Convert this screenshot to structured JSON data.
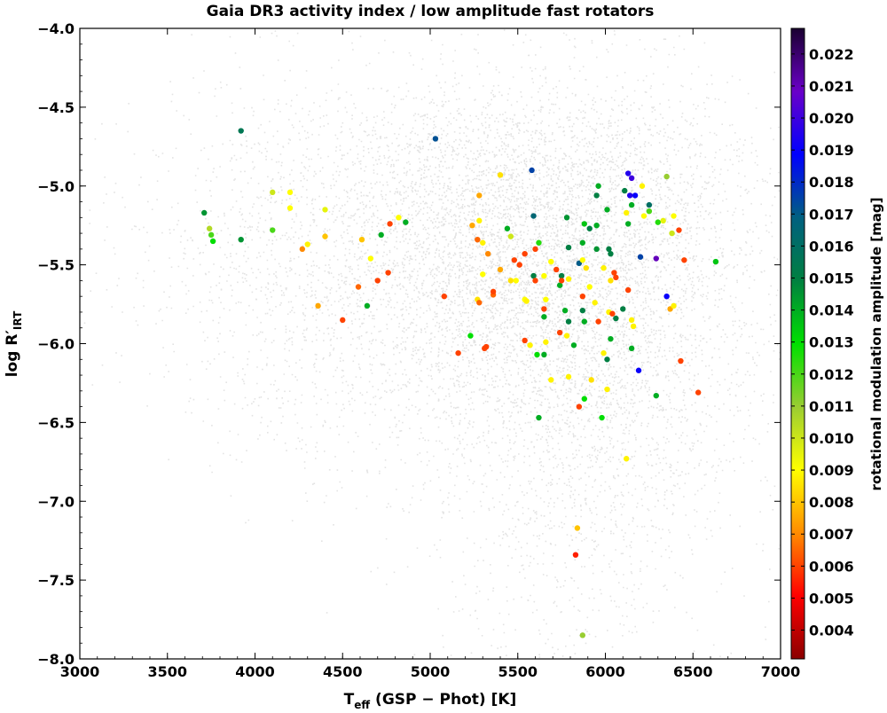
{
  "chart_data": {
    "type": "scatter",
    "title": "Gaia DR3 activity index / low amplitude fast rotators",
    "xlabel": {
      "main": "T",
      "sub": "eff",
      "rest": " (GSP − Phot) [K]"
    },
    "ylabel": {
      "main": "log R′",
      "sub": "IRT"
    },
    "xlim": [
      3000,
      7000
    ],
    "ylim": [
      -8.0,
      -4.0
    ],
    "x_ticks": [
      3000,
      3500,
      4000,
      4500,
      5000,
      5500,
      6000,
      6500,
      7000
    ],
    "x_tick_labels": [
      "3000",
      "3500",
      "4000",
      "4500",
      "5000",
      "5500",
      "6000",
      "6500",
      "7000"
    ],
    "y_ticks": [
      -4.0,
      -4.5,
      -5.0,
      -5.5,
      -6.0,
      -6.5,
      -7.0,
      -7.5,
      -8.0
    ],
    "y_tick_labels": [
      "−4.0",
      "−4.5",
      "−5.0",
      "−5.5",
      "−6.0",
      "−6.5",
      "−7.0",
      "−7.5",
      "−8.0"
    ],
    "grid": false,
    "colorbar": {
      "label": "rotational modulation amplitude [mag]",
      "range": [
        0.0031,
        0.0228
      ],
      "ticks": [
        0.004,
        0.005,
        0.006,
        0.007,
        0.008,
        0.009,
        0.01,
        0.011,
        0.012,
        0.013,
        0.014,
        0.015,
        0.016,
        0.017,
        0.018,
        0.019,
        0.02,
        0.021,
        0.022
      ],
      "tick_labels": [
        "0.004",
        "0.005",
        "0.006",
        "0.007",
        "0.008",
        "0.009",
        "0.010",
        "0.011",
        "0.012",
        "0.013",
        "0.014",
        "0.015",
        "0.016",
        "0.017",
        "0.018",
        "0.019",
        "0.020",
        "0.021",
        "0.022"
      ],
      "colors": [
        "#8b0000",
        "#ff0000",
        "#ff8c00",
        "#ffff00",
        "#9acd32",
        "#00e000",
        "#008040",
        "#006080",
        "#0000ff",
        "#6a00c8",
        "#1a0030"
      ]
    },
    "background_series": {
      "name": "Gaia DR3 sample",
      "color": "#808080",
      "description_density_regions": [
        {
          "x": 5600,
          "y": -5.4,
          "sx": 500,
          "sy": 0.55,
          "w": 0.35
        },
        {
          "x": 5000,
          "y": -5.7,
          "sx": 700,
          "sy": 0.6,
          "w": 0.2
        },
        {
          "x": 5900,
          "y": -6.5,
          "sx": 450,
          "sy": 0.8,
          "w": 0.2
        },
        {
          "x": 4400,
          "y": -5.3,
          "sx": 600,
          "sy": 0.5,
          "w": 0.1
        },
        {
          "x": 6300,
          "y": -5.5,
          "sx": 500,
          "sy": 0.6,
          "w": 0.1
        },
        {
          "x": 5500,
          "y": -4.8,
          "sx": 900,
          "sy": 0.2,
          "w": 0.05
        }
      ]
    },
    "series": [
      {
        "points": [
          [
            3920,
            -4.65,
            0.0155
          ],
          [
            5030,
            -4.7,
            0.0172
          ],
          [
            5580,
            -4.9,
            0.0175
          ],
          [
            5400,
            -4.93,
            0.0085
          ],
          [
            6130,
            -4.92,
            0.0195
          ],
          [
            6150,
            -4.95,
            0.02
          ],
          [
            6350,
            -4.94,
            0.011
          ],
          [
            6210,
            -5.0,
            0.0088
          ],
          [
            5960,
            -5.0,
            0.014
          ],
          [
            6110,
            -5.03,
            0.015
          ],
          [
            6140,
            -5.06,
            0.0195
          ],
          [
            6170,
            -5.06,
            0.019
          ],
          [
            5950,
            -5.06,
            0.015
          ],
          [
            5280,
            -5.06,
            0.0075
          ],
          [
            4100,
            -5.04,
            0.01
          ],
          [
            4200,
            -5.04,
            0.009
          ],
          [
            4200,
            -5.14,
            0.009
          ],
          [
            4400,
            -5.15,
            0.0095
          ],
          [
            3710,
            -5.17,
            0.0145
          ],
          [
            6150,
            -5.12,
            0.014
          ],
          [
            6250,
            -5.16,
            0.012
          ],
          [
            6120,
            -5.17,
            0.0088
          ],
          [
            6250,
            -5.12,
            0.016
          ],
          [
            6390,
            -5.19,
            0.009
          ],
          [
            6010,
            -5.15,
            0.014
          ],
          [
            5590,
            -5.19,
            0.0165
          ],
          [
            5780,
            -5.2,
            0.0145
          ],
          [
            4820,
            -5.2,
            0.009
          ],
          [
            4860,
            -5.23,
            0.014
          ],
          [
            5280,
            -5.22,
            0.0088
          ],
          [
            4770,
            -5.24,
            0.006
          ],
          [
            5880,
            -5.24,
            0.0135
          ],
          [
            5950,
            -5.25,
            0.014
          ],
          [
            5910,
            -5.27,
            0.015
          ],
          [
            6130,
            -5.24,
            0.014
          ],
          [
            6330,
            -5.22,
            0.0095
          ],
          [
            6220,
            -5.19,
            0.009
          ],
          [
            6420,
            -5.28,
            0.006
          ],
          [
            6300,
            -5.23,
            0.0125
          ],
          [
            5240,
            -5.25,
            0.0075
          ],
          [
            3740,
            -5.27,
            0.0105
          ],
          [
            4100,
            -5.28,
            0.012
          ],
          [
            5440,
            -5.27,
            0.014
          ],
          [
            5460,
            -5.32,
            0.01
          ],
          [
            4720,
            -5.31,
            0.014
          ],
          [
            3750,
            -5.31,
            0.012
          ],
          [
            3760,
            -5.35,
            0.013
          ],
          [
            3920,
            -5.34,
            0.0145
          ],
          [
            4610,
            -5.34,
            0.008
          ],
          [
            4400,
            -5.32,
            0.008
          ],
          [
            5270,
            -5.34,
            0.0065
          ],
          [
            5300,
            -5.36,
            0.0088
          ],
          [
            5620,
            -5.36,
            0.0125
          ],
          [
            5870,
            -5.36,
            0.014
          ],
          [
            6380,
            -5.3,
            0.01
          ],
          [
            6450,
            -5.47,
            0.006
          ],
          [
            6630,
            -5.48,
            0.0135
          ],
          [
            4300,
            -5.37,
            0.0088
          ],
          [
            4270,
            -5.4,
            0.007
          ],
          [
            5600,
            -5.4,
            0.006
          ],
          [
            5790,
            -5.39,
            0.015
          ],
          [
            5950,
            -5.4,
            0.0145
          ],
          [
            6020,
            -5.4,
            0.015
          ],
          [
            5330,
            -5.43,
            0.007
          ],
          [
            5540,
            -5.43,
            0.006
          ],
          [
            6030,
            -5.43,
            0.015
          ],
          [
            6200,
            -5.45,
            0.0175
          ],
          [
            6290,
            -5.46,
            0.021
          ],
          [
            5850,
            -5.49,
            0.017
          ],
          [
            5870,
            -5.47,
            0.009
          ],
          [
            5690,
            -5.48,
            0.009
          ],
          [
            4660,
            -5.46,
            0.009
          ],
          [
            5480,
            -5.47,
            0.006
          ],
          [
            5510,
            -5.5,
            0.006
          ],
          [
            4760,
            -5.55,
            0.006
          ],
          [
            5720,
            -5.53,
            0.006
          ],
          [
            5400,
            -5.53,
            0.0075
          ],
          [
            5300,
            -5.56,
            0.009
          ],
          [
            5650,
            -5.57,
            0.009
          ],
          [
            5750,
            -5.57,
            0.015
          ],
          [
            5790,
            -5.59,
            0.0088
          ],
          [
            5890,
            -5.52,
            0.0085
          ],
          [
            5990,
            -5.52,
            0.0088
          ],
          [
            6050,
            -5.55,
            0.006
          ],
          [
            6060,
            -5.58,
            0.006
          ],
          [
            6030,
            -5.6,
            0.0085
          ],
          [
            5460,
            -5.6,
            0.0085
          ],
          [
            5490,
            -5.6,
            0.009
          ],
          [
            5590,
            -5.57,
            0.015
          ],
          [
            5600,
            -5.6,
            0.006
          ],
          [
            4700,
            -5.6,
            0.006
          ],
          [
            5740,
            -5.63,
            0.014
          ],
          [
            5750,
            -5.6,
            0.006
          ],
          [
            4590,
            -5.64,
            0.0065
          ],
          [
            5910,
            -5.64,
            0.009
          ],
          [
            6130,
            -5.66,
            0.006
          ],
          [
            5080,
            -5.7,
            0.006
          ],
          [
            5360,
            -5.69,
            0.0065
          ],
          [
            5360,
            -5.67,
            0.006
          ],
          [
            5270,
            -5.72,
            0.0085
          ],
          [
            5280,
            -5.74,
            0.0065
          ],
          [
            5540,
            -5.72,
            0.009
          ],
          [
            5550,
            -5.73,
            0.0088
          ],
          [
            5660,
            -5.72,
            0.009
          ],
          [
            5870,
            -5.7,
            0.006
          ],
          [
            6350,
            -5.7,
            0.019
          ],
          [
            6370,
            -5.78,
            0.0075
          ],
          [
            6390,
            -5.76,
            0.0088
          ],
          [
            4360,
            -5.76,
            0.0075
          ],
          [
            4640,
            -5.76,
            0.014
          ],
          [
            5650,
            -5.78,
            0.006
          ],
          [
            5940,
            -5.74,
            0.0088
          ],
          [
            6100,
            -5.78,
            0.015
          ],
          [
            5770,
            -5.79,
            0.014
          ],
          [
            5870,
            -5.79,
            0.015
          ],
          [
            6020,
            -5.8,
            0.0088
          ],
          [
            6040,
            -5.81,
            0.006
          ],
          [
            4500,
            -5.85,
            0.006
          ],
          [
            5650,
            -5.83,
            0.014
          ],
          [
            5790,
            -5.86,
            0.015
          ],
          [
            5960,
            -5.86,
            0.006
          ],
          [
            5880,
            -5.86,
            0.014
          ],
          [
            6060,
            -5.84,
            0.015
          ],
          [
            6150,
            -5.85,
            0.0088
          ],
          [
            6160,
            -5.89,
            0.0088
          ],
          [
            5740,
            -5.93,
            0.006
          ],
          [
            5230,
            -5.95,
            0.013
          ],
          [
            5540,
            -5.98,
            0.006
          ],
          [
            5660,
            -5.99,
            0.0088
          ],
          [
            5780,
            -5.95,
            0.0088
          ],
          [
            6030,
            -5.97,
            0.014
          ],
          [
            5320,
            -6.02,
            0.006
          ],
          [
            5310,
            -6.03,
            0.006
          ],
          [
            5570,
            -6.01,
            0.0088
          ],
          [
            5820,
            -6.01,
            0.014
          ],
          [
            6150,
            -6.03,
            0.014
          ],
          [
            6430,
            -6.11,
            0.006
          ],
          [
            5160,
            -6.06,
            0.006
          ],
          [
            5610,
            -6.07,
            0.013
          ],
          [
            5650,
            -6.07,
            0.014
          ],
          [
            5990,
            -6.06,
            0.0088
          ],
          [
            6010,
            -6.1,
            0.015
          ],
          [
            6190,
            -6.17,
            0.019
          ],
          [
            5790,
            -6.21,
            0.0088
          ],
          [
            5920,
            -6.23,
            0.0085
          ],
          [
            5690,
            -6.23,
            0.0088
          ],
          [
            6010,
            -6.29,
            0.0088
          ],
          [
            6530,
            -6.31,
            0.006
          ],
          [
            6290,
            -6.33,
            0.014
          ],
          [
            5880,
            -6.35,
            0.013
          ],
          [
            5850,
            -6.4,
            0.006
          ],
          [
            5620,
            -6.47,
            0.014
          ],
          [
            5980,
            -6.47,
            0.013
          ],
          [
            6120,
            -6.73,
            0.0088
          ],
          [
            5840,
            -7.17,
            0.008
          ],
          [
            5830,
            -7.34,
            0.0055
          ],
          [
            5870,
            -7.85,
            0.011
          ]
        ]
      }
    ]
  }
}
